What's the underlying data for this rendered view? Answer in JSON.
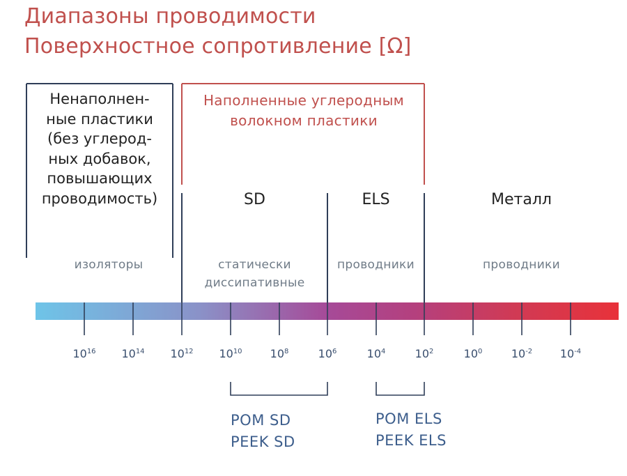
{
  "title": {
    "line1": "Диапазоны проводимости",
    "line2": "Поверхностное сопротивление [Ω]"
  },
  "groups": {
    "insulators_desc": "Ненаполнен-\nные пластики\n(без углерод-\nных добавок,\nповышающих\nпроводимость)",
    "carbon_filled_desc": "Наполненные углеродным\nволокном пластики"
  },
  "zones": [
    {
      "label": "",
      "sub": "изоляторы"
    },
    {
      "label": "SD",
      "sub": "статически\nдиссипативные"
    },
    {
      "label": "ELS",
      "sub": "проводники"
    },
    {
      "label": "Металл",
      "sub": "проводники"
    }
  ],
  "scale": {
    "base": "10",
    "exponents": [
      "16",
      "14",
      "12",
      "10",
      "8",
      "6",
      "4",
      "2",
      "0",
      "-2",
      "-4"
    ],
    "gradient": [
      "#6ec4e8",
      "#8a92c8",
      "#a64a98",
      "#b4407e",
      "#d03a55",
      "#e8323a"
    ]
  },
  "products": [
    {
      "lines": "POM SD\nPEEK SD"
    },
    {
      "lines": "POM ELS\nPEEK ELS"
    }
  ],
  "colors": {
    "accent": "#c0504d",
    "frame": "#2f3e58",
    "tick": "#2f3e58",
    "product": "#3d5e8c"
  }
}
